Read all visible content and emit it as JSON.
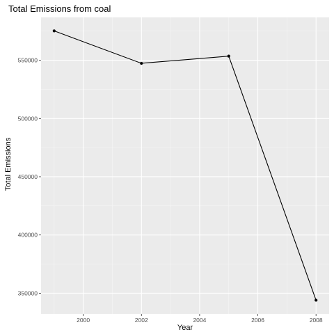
{
  "chart_data": {
    "type": "line",
    "title": "Total Emissions from coal",
    "xlabel": "Year",
    "ylabel": "Total Emissions",
    "x": [
      1999,
      2002,
      2005,
      2008
    ],
    "series": [
      {
        "values": [
          575207,
          547380,
          553549,
          343980
        ]
      }
    ],
    "xlim": [
      1998.55,
      2008.45
    ],
    "ylim": [
      332300,
      586800
    ],
    "x_ticks": [
      2000,
      2002,
      2004,
      2006,
      2008
    ],
    "x_tick_labels": [
      "2000",
      "2002",
      "2004",
      "2006",
      "2008"
    ],
    "y_ticks": [
      350000,
      400000,
      450000,
      500000,
      550000
    ],
    "y_tick_labels": [
      "350000",
      "400000",
      "450000",
      "500000",
      "550000"
    ],
    "grid": true,
    "legend": "none",
    "colors": {
      "panel_background": "#ebebeb",
      "major_grid": "#ffffff",
      "minor_grid": "#f5f5f5",
      "line": "#000000",
      "point": "#000000",
      "tick_label": "#4d4d4d"
    }
  }
}
